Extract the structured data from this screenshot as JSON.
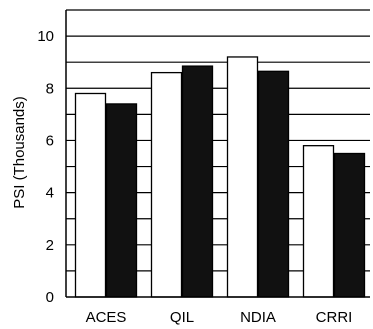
{
  "chart_data": {
    "type": "bar",
    "title": "",
    "xlabel": "",
    "ylabel": "PSI (Thousands)",
    "categories": [
      "ACES",
      "QIL",
      "NDIA",
      "CRRI"
    ],
    "series": [
      {
        "values": [
          7.8,
          8.6,
          9.2,
          5.8
        ],
        "color": "#ffffff"
      },
      {
        "values": [
          7.4,
          8.85,
          8.65,
          5.5
        ],
        "color": "#111111"
      }
    ],
    "ylim": [
      0,
      11
    ],
    "yticks": [
      0,
      2,
      4,
      6,
      8,
      10
    ],
    "grid": true,
    "legend": "none"
  }
}
